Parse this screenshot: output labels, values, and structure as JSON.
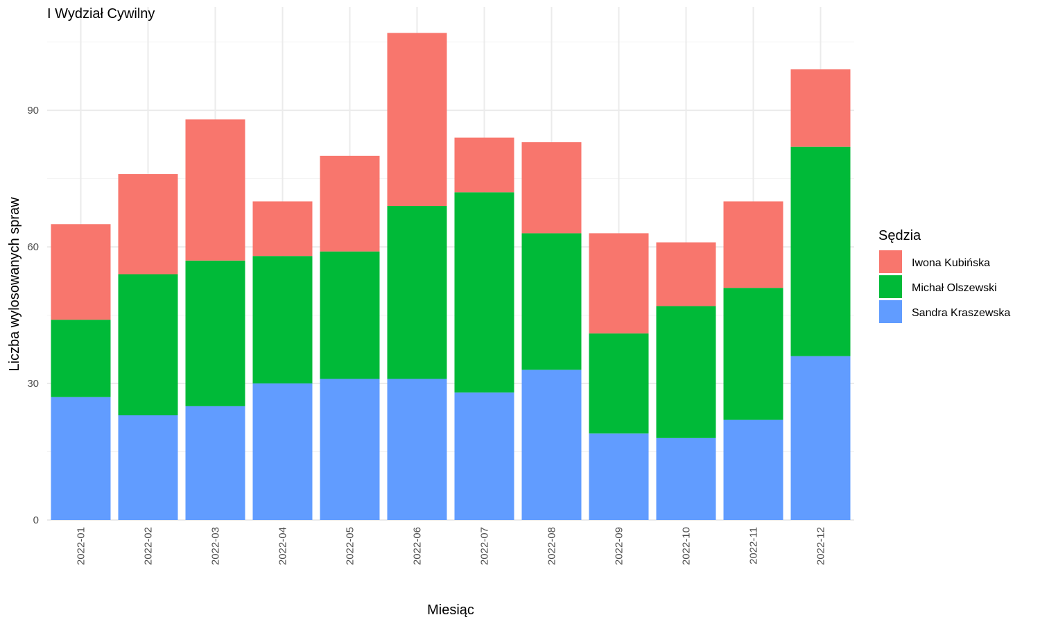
{
  "chart_data": {
    "type": "bar",
    "stacked": true,
    "title": "I Wydział Cywilny",
    "xlabel": "Miesiąc",
    "ylabel": "Liczba wylosowanych spraw",
    "categories": [
      "2022-01",
      "2022-02",
      "2022-03",
      "2022-04",
      "2022-05",
      "2022-06",
      "2022-07",
      "2022-08",
      "2022-09",
      "2022-10",
      "2022-11",
      "2022-12"
    ],
    "series": [
      {
        "name": "Sandra Kraszewska",
        "color": "#619CFF",
        "values": [
          27,
          23,
          25,
          30,
          31,
          31,
          28,
          33,
          19,
          18,
          22,
          36
        ]
      },
      {
        "name": "Michał Olszewski",
        "color": "#00BA38",
        "values": [
          17,
          31,
          32,
          28,
          28,
          38,
          44,
          30,
          22,
          29,
          29,
          46
        ]
      },
      {
        "name": "Iwona Kubińska",
        "color": "#F8766D",
        "values": [
          21,
          22,
          31,
          12,
          21,
          38,
          12,
          20,
          22,
          14,
          19,
          17
        ]
      }
    ],
    "ylim": [
      0,
      110
    ],
    "yticks": [
      0,
      30,
      60,
      90
    ],
    "grid": true,
    "legend": {
      "title": "Sędzia",
      "position": "right",
      "order": [
        "Iwona Kubińska",
        "Michał Olszewski",
        "Sandra Kraszewska"
      ]
    }
  }
}
